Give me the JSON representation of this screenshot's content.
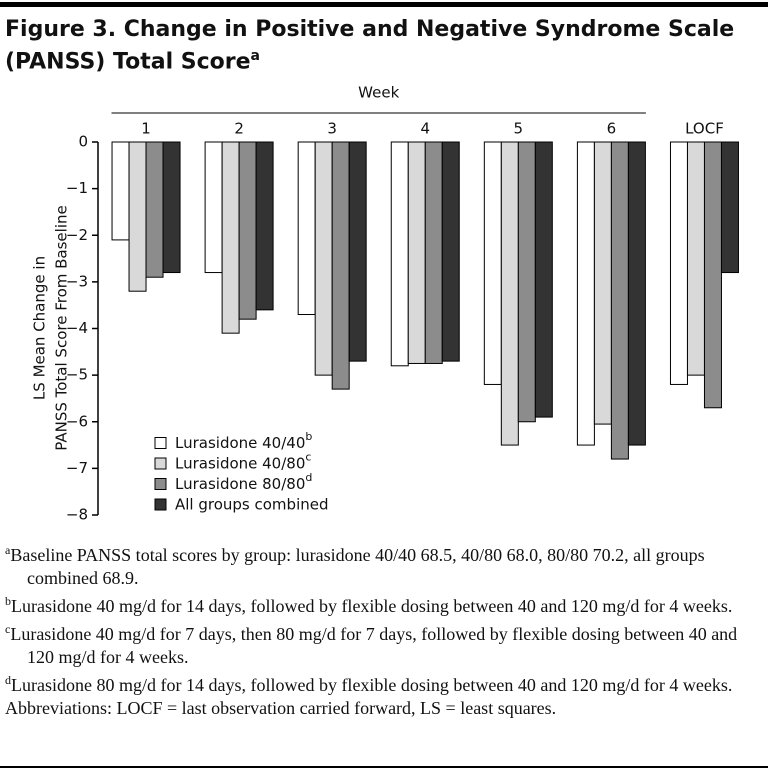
{
  "chart_data": {
    "type": "bar",
    "title": "Figure 3. Change in Positive and Negative Syndrome Scale (PANSS) Total Score",
    "title_superscript": "a",
    "group_label": "Week",
    "y_label": [
      "LS Mean Change in",
      "PANSS Total Score From Baseline"
    ],
    "categories": [
      "1",
      "2",
      "3",
      "4",
      "5",
      "6",
      "LOCF"
    ],
    "series": [
      {
        "name": "Lurasidone 40/40",
        "superscript": "b",
        "color": "#ffffff",
        "values": [
          -2.1,
          -2.8,
          -3.7,
          -4.8,
          -5.2,
          -6.5,
          -5.2
        ]
      },
      {
        "name": "Lurasidone 40/80",
        "superscript": "c",
        "color": "#d9d9d9",
        "values": [
          -3.2,
          -4.1,
          -5.0,
          -4.75,
          -6.5,
          -6.05,
          -5.0
        ]
      },
      {
        "name": "Lurasidone 80/80",
        "superscript": "d",
        "color": "#8c8c8c",
        "values": [
          -2.9,
          -3.8,
          -5.3,
          -4.75,
          -6.0,
          -6.8,
          -5.7
        ]
      },
      {
        "name": "All groups combined",
        "color": "#333333",
        "values": [
          -2.8,
          -3.6,
          -4.7,
          -4.7,
          -5.9,
          -6.5,
          -2.8
        ]
      }
    ],
    "ylim": [
      -8,
      0
    ],
    "yticks": [
      0,
      {
        "value": -1,
        "label": "−1"
      },
      {
        "value": -2,
        "label": "−2"
      },
      {
        "value": -3,
        "label": "−3"
      },
      {
        "value": -4,
        "label": "−4"
      },
      {
        "value": -5,
        "label": "−5"
      },
      {
        "value": -6,
        "label": "−6"
      },
      {
        "value": -7,
        "label": "−7"
      },
      {
        "value": -8,
        "label": "−8"
      }
    ],
    "grid": false
  },
  "notes": [
    {
      "mark": "a",
      "text": "Baseline PANSS total scores by group: lurasidone 40/40 68.5, 40/80 68.0, 80/80 70.2, all groups combined 68.9."
    },
    {
      "mark": "b",
      "text": "Lurasidone 40 mg/d for 14 days, followed by flexible dosing between 40 and 120 mg/d for 4 weeks."
    },
    {
      "mark": "c",
      "text": "Lurasidone 40 mg/d for 7 days, then 80 mg/d for 7 days, followed by flexible dosing between 40 and 120 mg/d for 4 weeks."
    },
    {
      "mark": "d",
      "text": "Lurasidone 80 mg/d for 14 days, followed by flexible dosing between 40 and 120 mg/d for 4 weeks."
    },
    {
      "mark": "",
      "text": "Abbreviations: LOCF = last observation carried forward, LS = least squares."
    }
  ]
}
